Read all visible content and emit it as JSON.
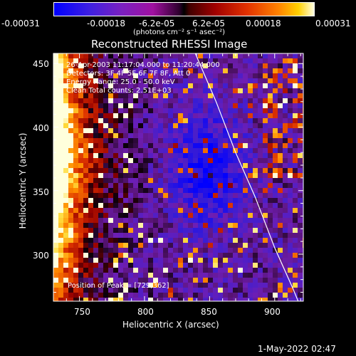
{
  "chart_data": {
    "type": "heatmap",
    "title": "Reconstructed RHESSI Image",
    "xlabel": "Heliocentric X (arcsec)",
    "ylabel": "Heliocentric Y (arcsec)",
    "xlim": [
      730,
      922
    ],
    "ylim": [
      263,
      458
    ],
    "x_ticks": [
      "750",
      "800",
      "850",
      "900"
    ],
    "y_ticks": [
      "300",
      "350",
      "400",
      "450"
    ],
    "colorbar": {
      "ticks": [
        "-0.00031",
        "-0.00018",
        "-6.2e-05",
        "6.2e-05",
        "0.00018",
        "0.00031"
      ],
      "unit": "(photons cm⁻² s⁻¹ asec⁻²)",
      "range": [
        -0.00031,
        0.00031
      ],
      "colors": [
        "#0000ff",
        "#5a2bd0",
        "#b000b0",
        "#000000",
        "#c00000",
        "#ff5000",
        "#ffb000",
        "#ffffd0"
      ]
    },
    "annotations": [
      "26-Apr-2003 11:17:04.000 to 11:20:44.000",
      "Detectors: 3F 4F 5F 6F 7F 8F, Att 0",
      "Energy Range: 25.0 - 50.0 keV",
      "Clean    Total counts: 2.51E+03",
      "Position of Peak = [729,362]"
    ],
    "peak": {
      "x": 729,
      "y": 362
    },
    "limb_curve": {
      "x": [
        839,
        855,
        870,
        885,
        900,
        914,
        918
      ],
      "y": [
        458,
        420,
        380,
        345,
        305,
        273,
        263
      ]
    }
  },
  "footer_date": "1-May-2022 02:47"
}
